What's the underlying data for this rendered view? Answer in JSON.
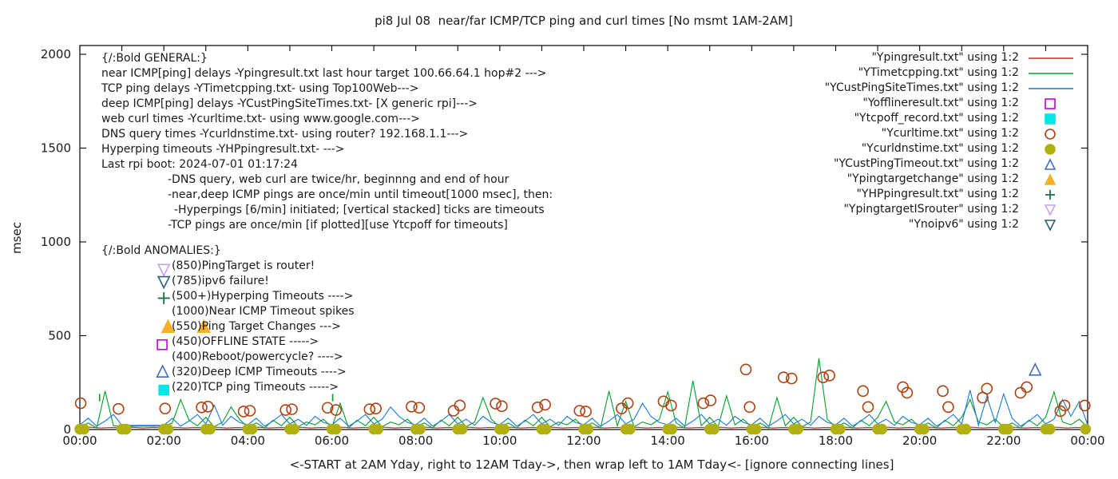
{
  "chart_data": {
    "type": "line",
    "title": "pi8 Jul 08  near/far ICMP/TCP ping and curl times [No msmt 1AM-2AM]",
    "xlabel": "<-START at 2AM Yday, right to 12AM Tday->, then wrap left to 1AM Tday<- [ignore connecting lines]",
    "ylabel": "msec",
    "xlim": [
      0,
      24
    ],
    "ylim": [
      0,
      2047
    ],
    "grid": false,
    "legend_position": "top-right",
    "x_ticks": [
      {
        "h": 0,
        "label": "00:00"
      },
      {
        "h": 2,
        "label": "02:00"
      },
      {
        "h": 4,
        "label": "04:00"
      },
      {
        "h": 6,
        "label": "06:00"
      },
      {
        "h": 8,
        "label": "08:00"
      },
      {
        "h": 10,
        "label": "10:00"
      },
      {
        "h": 12,
        "label": "12:00"
      },
      {
        "h": 14,
        "label": "14:00"
      },
      {
        "h": 16,
        "label": "16:00"
      },
      {
        "h": 18,
        "label": "18:00"
      },
      {
        "h": 20,
        "label": "20:00"
      },
      {
        "h": 22,
        "label": "22:00"
      },
      {
        "h": 24,
        "label": "00:00"
      }
    ],
    "y_ticks": [
      {
        "v": 0,
        "label": "0"
      },
      {
        "v": 500,
        "label": "500"
      },
      {
        "v": 1000,
        "label": "1000"
      },
      {
        "v": 1500,
        "label": "1500"
      },
      {
        "v": 2000,
        "label": "2000"
      }
    ],
    "line_series": [
      {
        "name": "Ypingresult.txt",
        "desc": "near ICMP ping delays",
        "color": "#e02020",
        "x_start": 0,
        "x_step": 0.25,
        "values": [
          9,
          12,
          8,
          11,
          9,
          12,
          8,
          11,
          9,
          12,
          8,
          11,
          9,
          12,
          8,
          11,
          9,
          12,
          8,
          11,
          9,
          12,
          8,
          11,
          9,
          12,
          8,
          11,
          9,
          12,
          8,
          11,
          9,
          12,
          8,
          11,
          9,
          12,
          8,
          11,
          9,
          12,
          8,
          11,
          9,
          12,
          8,
          11,
          9,
          12,
          8,
          11,
          9,
          12,
          8,
          11,
          9,
          12,
          8,
          11,
          9,
          12,
          8,
          11,
          9,
          12,
          8,
          11,
          9,
          12,
          8,
          11,
          9,
          12,
          8,
          11,
          9,
          12,
          8,
          11,
          9,
          12,
          8,
          11,
          9,
          12,
          8,
          11,
          9,
          12,
          8,
          11,
          9,
          12,
          8,
          11,
          9
        ]
      },
      {
        "name": "YTimetcpping.txt",
        "desc": "TCP ping delays",
        "color": "#00a028",
        "x_start": 0,
        "x_step": 0.2,
        "values": [
          12,
          35,
          8,
          205,
          20,
          18,
          18,
          18,
          18,
          18,
          18,
          35,
          160,
          50,
          20,
          65,
          15,
          40,
          120,
          55,
          12,
          35,
          8,
          50,
          20,
          65,
          15,
          40,
          25,
          55,
          12,
          140,
          8,
          50,
          20,
          65,
          15,
          40,
          25,
          55,
          12,
          35,
          8,
          50,
          20,
          65,
          15,
          40,
          170,
          55,
          12,
          35,
          8,
          50,
          20,
          65,
          15,
          40,
          25,
          55,
          12,
          35,
          8,
          205,
          20,
          150,
          15,
          40,
          25,
          55,
          200,
          35,
          8,
          260,
          20,
          65,
          15,
          180,
          25,
          55,
          12,
          35,
          8,
          170,
          20,
          65,
          15,
          40,
          380,
          55,
          12,
          35,
          8,
          50,
          20,
          65,
          150,
          40,
          25,
          55,
          12,
          35,
          8,
          50,
          20,
          65,
          160,
          40,
          25,
          55,
          12,
          35,
          8,
          50,
          20,
          65,
          200,
          40,
          25,
          55,
          12
        ]
      },
      {
        "name": "YCustPingSiteTimes.txt",
        "desc": "deep ICMP ping delays",
        "color": "#1878d8",
        "x_start": 0,
        "x_step": 0.2,
        "values": [
          25,
          60,
          18,
          45,
          80,
          22,
          22,
          22,
          22,
          22,
          22,
          60,
          18,
          45,
          80,
          30,
          130,
          22,
          70,
          38,
          25,
          60,
          18,
          45,
          80,
          30,
          55,
          22,
          70,
          38,
          25,
          60,
          18,
          45,
          80,
          30,
          55,
          120,
          70,
          38,
          25,
          60,
          18,
          45,
          80,
          30,
          55,
          22,
          70,
          38,
          25,
          60,
          18,
          45,
          80,
          30,
          55,
          22,
          70,
          38,
          25,
          60,
          18,
          45,
          80,
          30,
          55,
          140,
          70,
          38,
          25,
          60,
          18,
          45,
          80,
          30,
          55,
          22,
          70,
          38,
          25,
          60,
          18,
          45,
          80,
          30,
          55,
          22,
          70,
          38,
          25,
          60,
          18,
          45,
          80,
          30,
          55,
          22,
          70,
          38,
          25,
          60,
          18,
          45,
          80,
          30,
          210,
          22,
          175,
          38,
          190,
          60,
          18,
          45,
          80,
          30,
          55,
          160,
          70,
          150,
          25
        ]
      }
    ],
    "scatter_series": [
      {
        "name": "Yofflineresult.txt",
        "marker": "square",
        "filled": false,
        "color": "#c400d3",
        "size": 12,
        "points": [
          [
            1.96,
            452
          ]
        ]
      },
      {
        "name": "Ytcpoff_record.txt",
        "marker": "square",
        "filled": true,
        "color": "#00e5e5",
        "size": 12,
        "points": [
          [
            2.0,
            210
          ]
        ]
      },
      {
        "name": "Ycurltime.txt",
        "marker": "circle",
        "filled": false,
        "color": "#b04010",
        "size": 13,
        "points": [
          [
            0.02,
            140
          ],
          [
            0.92,
            110
          ],
          [
            2.03,
            112
          ],
          [
            2.9,
            118
          ],
          [
            3.05,
            122
          ],
          [
            3.9,
            96
          ],
          [
            4.05,
            100
          ],
          [
            4.9,
            104
          ],
          [
            5.05,
            108
          ],
          [
            5.9,
            116
          ],
          [
            6.1,
            104
          ],
          [
            6.9,
            108
          ],
          [
            7.05,
            112
          ],
          [
            7.9,
            122
          ],
          [
            8.08,
            116
          ],
          [
            8.9,
            100
          ],
          [
            9.05,
            128
          ],
          [
            9.9,
            138
          ],
          [
            10.05,
            124
          ],
          [
            10.9,
            118
          ],
          [
            11.08,
            132
          ],
          [
            11.9,
            100
          ],
          [
            12.05,
            96
          ],
          [
            12.9,
            112
          ],
          [
            13.05,
            140
          ],
          [
            13.9,
            150
          ],
          [
            14.08,
            128
          ],
          [
            14.85,
            140
          ],
          [
            15.02,
            155
          ],
          [
            15.86,
            320
          ],
          [
            15.95,
            120
          ],
          [
            16.76,
            278
          ],
          [
            16.95,
            272
          ],
          [
            17.7,
            278
          ],
          [
            17.85,
            288
          ],
          [
            18.65,
            205
          ],
          [
            18.77,
            120
          ],
          [
            19.6,
            226
          ],
          [
            19.7,
            196
          ],
          [
            20.55,
            205
          ],
          [
            20.68,
            120
          ],
          [
            21.5,
            170
          ],
          [
            21.6,
            218
          ],
          [
            22.4,
            196
          ],
          [
            22.55,
            226
          ],
          [
            23.35,
            98
          ],
          [
            23.45,
            128
          ],
          [
            23.93,
            128
          ]
        ]
      },
      {
        "name": "Ycurldnstime.txt",
        "marker": "circle",
        "filled": true,
        "color": "#b0b010",
        "size": 12,
        "points": [
          [
            0,
            2
          ],
          [
            0.1,
            2
          ],
          [
            1,
            2
          ],
          [
            1.1,
            2
          ],
          [
            2,
            2
          ],
          [
            2.1,
            2
          ],
          [
            3,
            2
          ],
          [
            3.1,
            2
          ],
          [
            4,
            2
          ],
          [
            4.1,
            2
          ],
          [
            5,
            2
          ],
          [
            5.1,
            2
          ],
          [
            6,
            2
          ],
          [
            6.1,
            2
          ],
          [
            7,
            2
          ],
          [
            7.1,
            2
          ],
          [
            8,
            2
          ],
          [
            8.1,
            2
          ],
          [
            9,
            2
          ],
          [
            9.1,
            2
          ],
          [
            10,
            2
          ],
          [
            10.1,
            2
          ],
          [
            11,
            2
          ],
          [
            11.1,
            2
          ],
          [
            12,
            2
          ],
          [
            12.1,
            2
          ],
          [
            13,
            2
          ],
          [
            13.1,
            2
          ],
          [
            14,
            2
          ],
          [
            14.1,
            2
          ],
          [
            15,
            2
          ],
          [
            15.1,
            2
          ],
          [
            16,
            2
          ],
          [
            16.1,
            2
          ],
          [
            17,
            2
          ],
          [
            17.1,
            2
          ],
          [
            18,
            2
          ],
          [
            18.1,
            2
          ],
          [
            19,
            2
          ],
          [
            19.1,
            2
          ],
          [
            20,
            2
          ],
          [
            20.1,
            2
          ],
          [
            21,
            2
          ],
          [
            21.1,
            2
          ],
          [
            22,
            2
          ],
          [
            22.1,
            2
          ],
          [
            23,
            2
          ],
          [
            23.1,
            2
          ],
          [
            23.95,
            2
          ]
        ]
      },
      {
        "name": "YCustPingTimeout.txt",
        "marker": "triangle-up",
        "filled": false,
        "color": "#3f6dc4",
        "size": 14,
        "points": [
          [
            1.97,
            310
          ],
          [
            22.75,
            320
          ]
        ]
      },
      {
        "name": "Ypingtargetchange",
        "marker": "triangle-up",
        "filled": true,
        "color": "#f5b02a",
        "size": 15,
        "points": [
          [
            2.1,
            550
          ],
          [
            2.95,
            550
          ]
        ]
      },
      {
        "name": "YHPpingresult.txt",
        "marker": "plus",
        "filled": false,
        "color": "#1a6b4a",
        "size": 15,
        "points": [
          [
            2.0,
            700
          ]
        ]
      },
      {
        "name": "YpingtargetISrouter",
        "marker": "triangle-down",
        "filled": false,
        "color": "#c9a1ef",
        "size": 14,
        "points": [
          [
            2.0,
            850
          ]
        ]
      },
      {
        "name": "Ynoipv6",
        "marker": "triangle-down",
        "filled": false,
        "color": "#2e5f72",
        "size": 14,
        "points": [
          [
            2.0,
            785
          ]
        ]
      }
    ],
    "tick_stacks": {
      "name": "hyperping-timeout-ticks",
      "color": "#00a028",
      "segments": [
        [
          0.47,
          150,
          190
        ],
        [
          6.02,
          150,
          190
        ]
      ]
    }
  },
  "annotations": {
    "general": {
      "lines": [
        {
          "text": "{/:Bold GENERAL:}",
          "indent": 0
        },
        {
          "text": "near ICMP[ping] delays -Ypingresult.txt last hour target 100.66.64.1 hop#2 --->",
          "indent": 0
        },
        {
          "text": "TCP ping delays -YTimetcpping.txt- using Top100Web--->",
          "indent": 0
        },
        {
          "text": "deep ICMP[ping] delays -YCustPingSiteTimes.txt- [X generic rpi]--->",
          "indent": 0
        },
        {
          "text": "web curl times -Ycurltime.txt- using www.google.com--->",
          "indent": 0
        },
        {
          "text": "DNS query times -Ycurldnstime.txt- using router? 192.168.1.1--->",
          "indent": 0
        },
        {
          "text": "Hyperping timeouts -YHPpingresult.txt- --->",
          "indent": 0
        },
        {
          "text": "Last rpi boot: 2024-07-01 01:17:24",
          "indent": 0
        },
        {
          "text": "-DNS query, web curl are twice/hr, beginnng and end of hour",
          "indent": 83
        },
        {
          "text": "-near,deep ICMP pings are once/min until timeout[1000 msec], then:",
          "indent": 83
        },
        {
          "text": "-Hyperpings [6/min] initiated; [vertical stacked] ticks are timeouts",
          "indent": 91
        },
        {
          "text": "-TCP pings are once/min [if plotted][use Ytcpoff for timeouts]",
          "indent": 83
        }
      ]
    },
    "anomalies": {
      "lines": [
        {
          "text": "{/:Bold ANOMALIES:}",
          "indent": 0
        },
        {
          "text": "(850)PingTarget is router!",
          "indent": 88
        },
        {
          "text": "(785)ipv6 failure!",
          "indent": 88
        },
        {
          "text": "(500+)Hyperping Timeouts ---->",
          "indent": 88
        },
        {
          "text": "(1000)Near ICMP Timeout spikes",
          "indent": 88
        },
        {
          "text": "(550)Ping Target Changes --->",
          "indent": 88
        },
        {
          "text": "(450)OFFLINE STATE ----->",
          "indent": 88
        },
        {
          "text": "(400)Reboot/powercycle? ---->",
          "indent": 88
        },
        {
          "text": "(320)Deep ICMP Timeouts ---->",
          "indent": 88
        },
        {
          "text": "(220)TCP ping Timeouts ----->",
          "indent": 88
        }
      ]
    }
  },
  "legend": {
    "entries": [
      {
        "label": "\"Ypingresult.txt\" using 1:2",
        "sample": "line",
        "color": "#e02020"
      },
      {
        "label": "\"YTimetcpping.txt\" using 1:2",
        "sample": "line",
        "color": "#00a028"
      },
      {
        "label": "\"YCustPingSiteTimes.txt\" using 1:2",
        "sample": "line",
        "color": "#1878d8"
      },
      {
        "label": "\"Yofflineresult.txt\" using 1:2",
        "sample": "square",
        "filled": false,
        "color": "#c400d3"
      },
      {
        "label": "\"Ytcpoff_record.txt\" using 1:2",
        "sample": "square",
        "filled": true,
        "color": "#00e5e5"
      },
      {
        "label": "\"Ycurltime.txt\" using 1:2",
        "sample": "circle",
        "filled": false,
        "color": "#b04010"
      },
      {
        "label": "\"Ycurldnstime.txt\" using 1:2",
        "sample": "circle",
        "filled": true,
        "color": "#b0b010"
      },
      {
        "label": "\"YCustPingTimeout.txt\" using 1:2",
        "sample": "triangle-up",
        "filled": false,
        "color": "#3f6dc4"
      },
      {
        "label": "\"Ypingtargetchange\" using 1:2",
        "sample": "triangle-up",
        "filled": true,
        "color": "#f5b02a"
      },
      {
        "label": "\"YHPpingresult.txt\" using 1:2",
        "sample": "plus",
        "filled": false,
        "color": "#1a6b4a"
      },
      {
        "label": "\"YpingtargetISrouter\" using 1:2",
        "sample": "triangle-down",
        "filled": false,
        "color": "#c9a1ef"
      },
      {
        "label": "\"Ynoipv6\" using 1:2",
        "sample": "triangle-down",
        "filled": false,
        "color": "#2e5f72"
      }
    ]
  }
}
